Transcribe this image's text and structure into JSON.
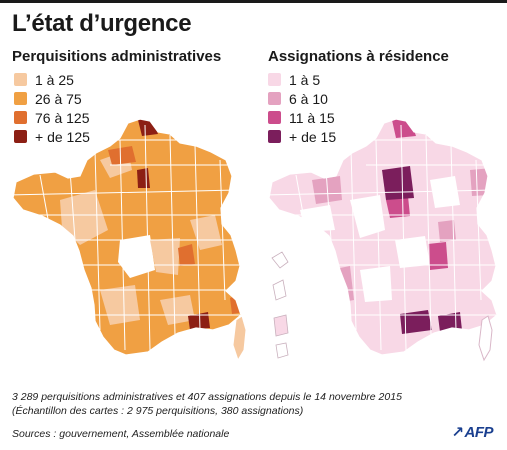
{
  "header": {
    "title": "L’état d’urgence"
  },
  "maps": [
    {
      "subtitle": "Perquisitions administratives",
      "legend": [
        {
          "label": "1 à 25",
          "color": "#f6c9a0"
        },
        {
          "label": "26 à 75",
          "color": "#f0a043"
        },
        {
          "label": "76 à 125",
          "color": "#e06f2f"
        },
        {
          "label": "+ de 125",
          "color": "#8c1f14"
        }
      ]
    },
    {
      "subtitle": "Assignations à résidence",
      "legend": [
        {
          "label": "1 à 5",
          "color": "#f8d8e6"
        },
        {
          "label": "6 à 10",
          "color": "#e4a2c0"
        },
        {
          "label": "11 à 15",
          "color": "#cc4d8c"
        },
        {
          "label": "+ de 15",
          "color": "#7b1e5c"
        }
      ]
    }
  ],
  "footer": {
    "summary": "3 289 perquisitions administratives et 407 assignations depuis le 14 novembre 2015",
    "sample": "(Échantillon des cartes : 2 975 perquisitions, 380 assignations)",
    "sources": "Sources : gouvernement, Assemblée nationale",
    "logo": "AFP"
  }
}
